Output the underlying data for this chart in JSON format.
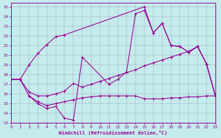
{
  "bg_color": "#c5ecec",
  "line_color": "#990099",
  "xlabel": "Windchill (Refroidissement éolien,°C)",
  "xlim": [
    0,
    23
  ],
  "ylim": [
    13,
    25.4
  ],
  "xticks": [
    0,
    1,
    2,
    3,
    4,
    5,
    6,
    7,
    8,
    9,
    10,
    11,
    12,
    13,
    14,
    15,
    16,
    17,
    18,
    19,
    20,
    21,
    22,
    23
  ],
  "yticks": [
    13,
    14,
    15,
    16,
    17,
    18,
    19,
    20,
    21,
    22,
    23,
    24,
    25
  ],
  "line1_x": [
    0,
    1,
    2,
    3,
    4,
    5,
    6,
    15,
    16,
    17,
    18,
    19,
    20,
    21,
    22,
    23
  ],
  "line1_y": [
    17.5,
    17.5,
    19.0,
    20.2,
    21.1,
    21.9,
    22.1,
    25.0,
    22.3,
    23.3,
    21.0,
    20.9,
    20.3,
    20.9,
    19.1,
    15.8
  ],
  "line2_x": [
    0,
    1,
    2,
    3,
    4,
    5,
    6,
    7,
    8,
    11,
    12,
    13,
    14,
    15,
    16,
    17,
    18,
    19,
    20,
    21,
    22,
    23
  ],
  "line2_y": [
    17.5,
    17.5,
    15.8,
    15.0,
    14.5,
    14.7,
    13.5,
    13.3,
    19.8,
    17.0,
    17.5,
    18.3,
    24.3,
    24.6,
    22.3,
    23.3,
    21.0,
    20.9,
    20.3,
    20.9,
    19.1,
    15.8
  ],
  "line3_x": [
    0,
    1,
    2,
    3,
    4,
    5,
    6,
    7,
    8,
    9,
    10,
    11,
    12,
    13,
    14,
    15,
    16,
    17,
    18,
    19,
    20,
    21,
    22,
    23
  ],
  "line3_y": [
    17.5,
    17.5,
    16.2,
    15.8,
    15.8,
    16.0,
    16.3,
    17.1,
    16.7,
    17.0,
    17.3,
    17.6,
    17.9,
    18.2,
    18.5,
    18.9,
    19.2,
    19.5,
    19.8,
    20.1,
    20.4,
    20.9,
    19.1,
    15.8
  ],
  "line4_x": [
    2,
    3,
    4,
    5,
    6,
    7,
    8,
    9,
    10,
    11,
    12,
    13,
    14,
    15,
    16,
    17,
    18,
    19,
    20,
    21,
    22,
    23
  ],
  "line4_y": [
    15.8,
    15.2,
    14.8,
    15.0,
    15.2,
    15.4,
    15.6,
    15.7,
    15.8,
    15.8,
    15.8,
    15.8,
    15.8,
    15.5,
    15.5,
    15.5,
    15.6,
    15.6,
    15.7,
    15.7,
    15.8,
    15.8
  ]
}
